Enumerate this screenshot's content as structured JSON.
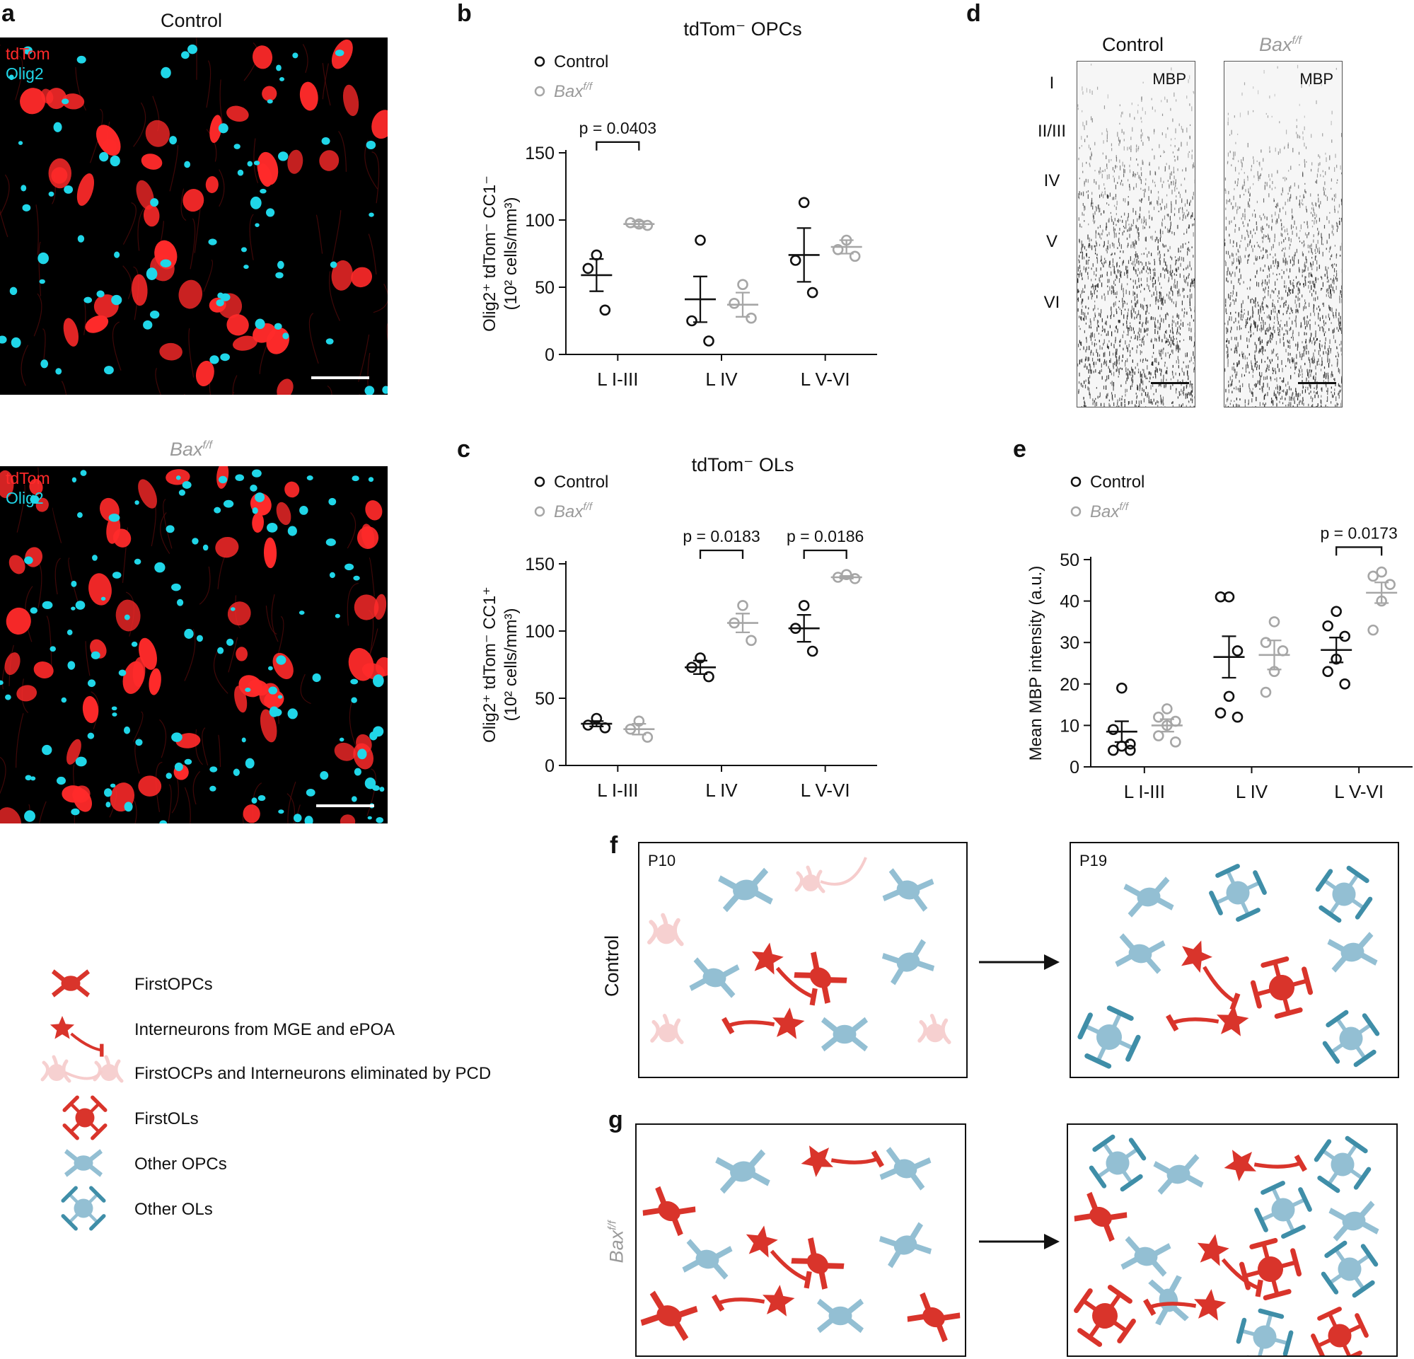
{
  "panels": {
    "a": "a",
    "b": "b",
    "c": "c",
    "d": "d",
    "e": "e",
    "f": "f",
    "g": "g"
  },
  "panel_a": {
    "top_title": "Control",
    "bottom_title_base": "Bax",
    "bottom_title_sup": "f/f",
    "channel1": "tdTom",
    "channel2": "Olig2",
    "channel1_color": "#ff2a2a",
    "channel2_color": "#20d6e8"
  },
  "panel_d": {
    "left_title": "Control",
    "right_title_base": "Bax",
    "right_title_sup": "f/f",
    "stain": "MBP",
    "layers": [
      "I",
      "II/III",
      "IV",
      "V",
      "VI"
    ]
  },
  "legend": {
    "control": "Control",
    "bax_base": "Bax",
    "bax_sup": "f/f",
    "control_color": "#111111",
    "bax_color": "#a6a6a6"
  },
  "scheme": {
    "row_f_label": "Control",
    "row_g_label_base": "Bax",
    "row_g_label_sup": "f/f",
    "tp1": "P10",
    "tp2": "P19",
    "red": "#d9342b",
    "blue": "#93bfd3",
    "faded": "#f6cccc",
    "legend": [
      {
        "icon": "first-opc-icon",
        "label": "FirstOPCs"
      },
      {
        "icon": "interneuron-icon",
        "label": "Interneurons from MGE and ePOA"
      },
      {
        "icon": "eliminated-cell-icon",
        "label": "FirstOCPs and Interneurons eliminated by PCD"
      },
      {
        "icon": "first-ol-icon",
        "label": "FirstOLs"
      },
      {
        "icon": "other-opc-icon",
        "label": "Other OPCs"
      },
      {
        "icon": "other-ol-icon",
        "label": "Other OLs"
      }
    ]
  },
  "chart_data": [
    {
      "panel": "b",
      "type": "scatter",
      "title": "tdTom⁻ OPCs",
      "ylabel_line1": "Olig2⁺ tdTom⁻ CC1⁻",
      "ylabel_line2": "(10² cells/mm³)",
      "ylim": [
        0,
        150
      ],
      "yticks": [
        0,
        50,
        100,
        150
      ],
      "categories": [
        "L I-III",
        "L IV",
        "L V-VI"
      ],
      "series": [
        {
          "name": "Control",
          "color": "#111111",
          "mean": [
            59,
            41,
            74
          ],
          "sem": [
            12,
            17,
            20
          ],
          "points": [
            [
              74,
              64,
              33
            ],
            [
              85,
              25,
              10
            ],
            [
              113,
              70,
              46
            ]
          ]
        },
        {
          "name": "Baxf/f",
          "color": "#a6a6a6",
          "mean": [
            97,
            37,
            80
          ],
          "sem": [
            2,
            9,
            5
          ],
          "points": [
            [
              97,
              98,
              96
            ],
            [
              52,
              38,
              27
            ],
            [
              85,
              78,
              73
            ]
          ]
        }
      ],
      "annotations": [
        {
          "category": 0,
          "text": "p = 0.0403",
          "y": 158
        }
      ]
    },
    {
      "panel": "c",
      "type": "scatter",
      "title": "tdTom⁻ OLs",
      "ylabel_line1": "Olig2⁺ tdTom⁻ CC1⁺",
      "ylabel_line2": "(10² cells/mm³)",
      "ylim": [
        0,
        150
      ],
      "yticks": [
        0,
        50,
        100,
        150
      ],
      "categories": [
        "L I-III",
        "L IV",
        "L V-VI"
      ],
      "series": [
        {
          "name": "Control",
          "color": "#111111",
          "mean": [
            31,
            73,
            102
          ],
          "sem": [
            2,
            5,
            10
          ],
          "points": [
            [
              35,
              30,
              28
            ],
            [
              80,
              73,
              66
            ],
            [
              119,
              102,
              85
            ]
          ]
        },
        {
          "name": "Baxf/f",
          "color": "#a6a6a6",
          "mean": [
            27,
            106,
            140
          ],
          "sem": [
            4,
            7,
            1
          ],
          "points": [
            [
              33,
              27,
              21
            ],
            [
              119,
              106,
              93
            ],
            [
              142,
              140,
              139
            ]
          ]
        }
      ],
      "annotations": [
        {
          "category": 1,
          "text": "p = 0.0183",
          "y": 160
        },
        {
          "category": 2,
          "text": "p = 0.0186",
          "y": 160
        }
      ]
    },
    {
      "panel": "e",
      "type": "scatter",
      "title": "",
      "ylabel_line1": "Mean MBP intensity (a.u.)",
      "ylabel_line2": "",
      "ylim": [
        0,
        50
      ],
      "yticks": [
        0,
        10,
        20,
        30,
        40,
        50
      ],
      "categories": [
        "L I-III",
        "L IV",
        "L V-VI"
      ],
      "series": [
        {
          "name": "Control",
          "color": "#111111",
          "mean": [
            8.5,
            26.5,
            28.2
          ],
          "sem": [
            2.5,
            5,
            3
          ],
          "points": [
            [
              19,
              9,
              5.5,
              5,
              4,
              4
            ],
            [
              41,
              41,
              28,
              17,
              13,
              12
            ],
            [
              37.5,
              34,
              31.5,
              26,
              23,
              20
            ]
          ]
        },
        {
          "name": "Baxf/f",
          "color": "#a6a6a6",
          "mean": [
            10,
            27,
            42
          ],
          "sem": [
            1.5,
            3.5,
            2.5
          ],
          "points": [
            [
              14,
              12,
              11,
              10,
              7.5,
              6
            ],
            [
              35,
              30,
              28,
              23,
              18
            ],
            [
              47,
              46,
              44,
              40,
              33
            ]
          ]
        }
      ],
      "annotations": [
        {
          "category": 2,
          "text": "p = 0.0173",
          "y": 53
        }
      ]
    }
  ]
}
